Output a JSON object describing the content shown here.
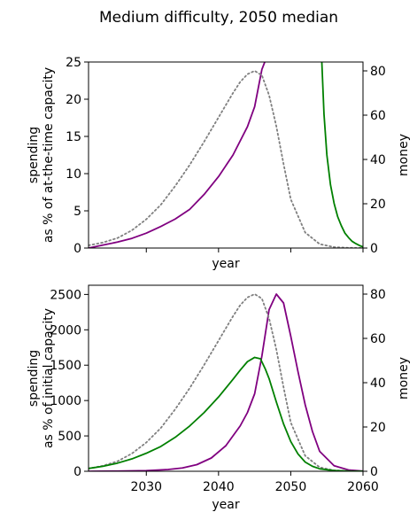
{
  "suptitle": "Medium difficulty, 2050 median",
  "chart_data": [
    {
      "type": "line",
      "xlabel": "year",
      "ylabel_left": [
        "spending",
        "as % of at-the-time capacity"
      ],
      "ylabel_right": "money",
      "xlim": [
        2022,
        2060
      ],
      "ylim_left": [
        0,
        25
      ],
      "ylim_right": [
        0,
        84
      ],
      "yticks_left": [
        0,
        5,
        10,
        15,
        20,
        25
      ],
      "yticks_right": [
        0,
        20,
        40,
        60,
        80
      ],
      "xticks": [
        2030,
        2040,
        2050,
        2060
      ],
      "show_xtick_labels": false,
      "grid": false,
      "series": [
        {
          "color": "#800080",
          "style": "solid",
          "axis": "left",
          "x": [
            2022,
            2024,
            2026,
            2028,
            2030,
            2032,
            2034,
            2036,
            2038,
            2040,
            2042,
            2044,
            2045,
            2045.5,
            2046,
            2046.4
          ],
          "y": [
            0,
            0.4,
            0.8,
            1.3,
            2.0,
            2.9,
            3.9,
            5.2,
            7.2,
            9.6,
            12.5,
            16.3,
            19.0,
            21.5,
            24.0,
            25.0
          ]
        },
        {
          "color": "#808080",
          "style": "dotted",
          "axis": "right",
          "x": [
            2022,
            2024,
            2026,
            2028,
            2030,
            2032,
            2034,
            2036,
            2038,
            2040,
            2042,
            2043,
            2044,
            2045,
            2046,
            2047,
            2048,
            2049,
            2050,
            2052,
            2054,
            2056,
            2058,
            2060
          ],
          "y": [
            1.2,
            2.5,
            4.5,
            8,
            13,
            19.5,
            28,
            37.5,
            48,
            59,
            70,
            75,
            78.5,
            80,
            78,
            69,
            55,
            38,
            22,
            7,
            1.8,
            0.4,
            0.1,
            0
          ]
        },
        {
          "color": "#008000",
          "style": "solid",
          "axis": "left",
          "x": [
            2054.3,
            2054.6,
            2055,
            2055.5,
            2056,
            2056.5,
            2057,
            2057.5,
            2058,
            2058.5,
            2059,
            2059.5,
            2060
          ],
          "y": [
            25,
            18,
            12.5,
            8.5,
            6.0,
            4.2,
            3.0,
            2.0,
            1.4,
            0.9,
            0.6,
            0.35,
            0.15
          ]
        }
      ]
    },
    {
      "type": "line",
      "xlabel": "year",
      "ylabel_left": [
        "spending",
        "as % of initial capacity"
      ],
      "ylabel_right": "money",
      "xlim": [
        2022,
        2060
      ],
      "ylim_left": [
        0,
        2630
      ],
      "ylim_right": [
        0,
        84
      ],
      "yticks_left": [
        0,
        500,
        1000,
        1500,
        2000,
        2500
      ],
      "yticks_right": [
        0,
        20,
        40,
        60,
        80
      ],
      "xticks": [
        2030,
        2040,
        2050,
        2060
      ],
      "show_xtick_labels": true,
      "grid": false,
      "series": [
        {
          "color": "#800080",
          "style": "solid",
          "axis": "right",
          "x": [
            2022,
            2026,
            2030,
            2033,
            2035,
            2037,
            2039,
            2041,
            2043,
            2044,
            2045,
            2046,
            2047,
            2048,
            2049,
            2050,
            2051,
            2052,
            2053,
            2054,
            2056,
            2058,
            2060
          ],
          "y": [
            0,
            0.1,
            0.3,
            0.8,
            1.5,
            3,
            6,
            11.5,
            20.5,
            26.5,
            35,
            52,
            73,
            80,
            76,
            61,
            45,
            30,
            18,
            9,
            2.5,
            0.6,
            0.1
          ]
        },
        {
          "color": "#808080",
          "style": "dotted",
          "axis": "right",
          "x": [
            2022,
            2024,
            2026,
            2028,
            2030,
            2032,
            2034,
            2036,
            2038,
            2040,
            2042,
            2043,
            2044,
            2045,
            2046,
            2047,
            2048,
            2049,
            2050,
            2052,
            2054,
            2056,
            2058,
            2060
          ],
          "y": [
            1.2,
            2.5,
            4.5,
            8,
            13,
            19.5,
            28,
            37.5,
            48,
            59,
            70,
            75,
            78.5,
            80,
            78,
            69,
            55,
            38,
            22,
            7,
            1.8,
            0.4,
            0.1,
            0
          ]
        },
        {
          "color": "#008000",
          "style": "solid",
          "axis": "left",
          "x": [
            2022,
            2024,
            2026,
            2028,
            2030,
            2032,
            2034,
            2036,
            2038,
            2040,
            2042,
            2043,
            2044,
            2045,
            2045.8,
            2046.5,
            2047,
            2048,
            2049,
            2050,
            2051,
            2052,
            2053,
            2054,
            2056,
            2058,
            2060
          ],
          "y": [
            40,
            70,
            115,
            175,
            255,
            350,
            480,
            640,
            830,
            1050,
            1300,
            1430,
            1550,
            1610,
            1590,
            1440,
            1310,
            980,
            670,
            420,
            245,
            130,
            70,
            35,
            10,
            3,
            1
          ]
        }
      ]
    }
  ]
}
